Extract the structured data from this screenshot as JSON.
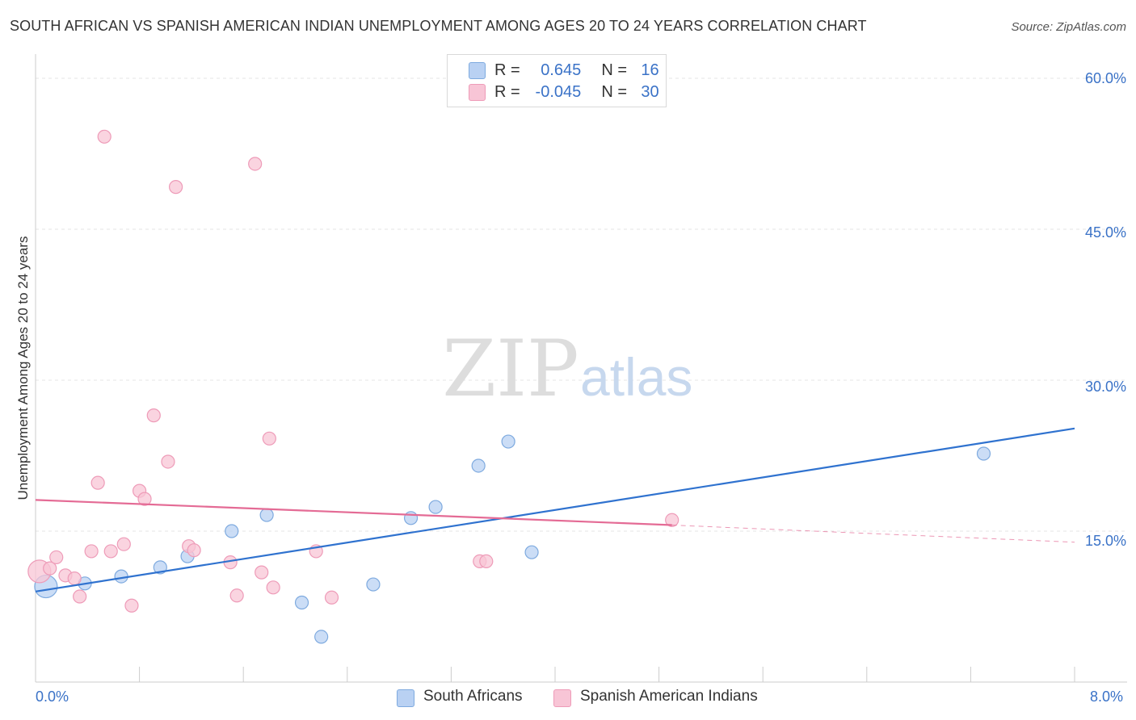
{
  "title": "SOUTH AFRICAN VS SPANISH AMERICAN INDIAN UNEMPLOYMENT AMONG AGES 20 TO 24 YEARS CORRELATION CHART",
  "source": "Source: ZipAtlas.com",
  "watermark": {
    "zip": "ZIP",
    "atlas": "atlas"
  },
  "legend": {
    "rows": [
      {
        "r_label": "R =",
        "r_value": "0.645",
        "n_label": "N =",
        "n_value": "16"
      },
      {
        "r_label": "R =",
        "r_value": "-0.045",
        "n_label": "N =",
        "n_value": "30"
      }
    ]
  },
  "colors": {
    "blue_fill": "#b9d1f3",
    "blue_stroke": "#7eaadf",
    "blue_line": "#2f72cf",
    "pink_fill": "#f8c5d6",
    "pink_stroke": "#ee9bb8",
    "pink_line": "#e46b95",
    "axis_text": "#3a72c7",
    "grid": "#e4e4e4"
  },
  "chart_data": {
    "type": "scatter",
    "title": "SOUTH AFRICAN VS SPANISH AMERICAN INDIAN UNEMPLOYMENT AMONG AGES 20 TO 24 YEARS CORRELATION CHART",
    "xlabel": "",
    "ylabel": "Unemployment Among Ages 20 to 24 years",
    "xlim": [
      0,
      8
    ],
    "ylim": [
      0,
      60
    ],
    "x_tick_labels": [
      "0.0%",
      "8.0%"
    ],
    "y_ticks": [
      15,
      30,
      45,
      60
    ],
    "y_tick_labels": [
      "15.0%",
      "30.0%",
      "45.0%",
      "60.0%"
    ],
    "grid": true,
    "legend_position": "top-center",
    "series": [
      {
        "name": "South Africans",
        "color": "#b9d1f3",
        "points": [
          {
            "x": 0.08,
            "y": 9.5,
            "big": true
          },
          {
            "x": 0.38,
            "y": 9.8
          },
          {
            "x": 0.66,
            "y": 10.5
          },
          {
            "x": 0.96,
            "y": 11.4
          },
          {
            "x": 1.17,
            "y": 12.5
          },
          {
            "x": 1.51,
            "y": 15.0
          },
          {
            "x": 1.78,
            "y": 16.6
          },
          {
            "x": 2.05,
            "y": 7.9
          },
          {
            "x": 2.2,
            "y": 4.5
          },
          {
            "x": 2.6,
            "y": 9.7
          },
          {
            "x": 2.89,
            "y": 16.3
          },
          {
            "x": 3.08,
            "y": 17.4
          },
          {
            "x": 3.41,
            "y": 21.5
          },
          {
            "x": 3.64,
            "y": 23.9
          },
          {
            "x": 3.82,
            "y": 12.9
          },
          {
            "x": 7.3,
            "y": 22.7
          }
        ],
        "trend": {
          "x0": 0.0,
          "y0": 9.0,
          "x1": 8.0,
          "y1": 25.2
        }
      },
      {
        "name": "Spanish American Indians",
        "color": "#f8c5d6",
        "points": [
          {
            "x": 0.03,
            "y": 11.0,
            "big": true
          },
          {
            "x": 0.11,
            "y": 11.3
          },
          {
            "x": 0.16,
            "y": 12.4
          },
          {
            "x": 0.23,
            "y": 10.6
          },
          {
            "x": 0.3,
            "y": 10.3
          },
          {
            "x": 0.34,
            "y": 8.5
          },
          {
            "x": 0.43,
            "y": 13.0
          },
          {
            "x": 0.48,
            "y": 19.8
          },
          {
            "x": 0.53,
            "y": 54.2
          },
          {
            "x": 0.58,
            "y": 13.0
          },
          {
            "x": 0.68,
            "y": 13.7
          },
          {
            "x": 0.74,
            "y": 7.6
          },
          {
            "x": 0.8,
            "y": 19.0
          },
          {
            "x": 0.84,
            "y": 18.2
          },
          {
            "x": 0.91,
            "y": 26.5
          },
          {
            "x": 1.02,
            "y": 21.9
          },
          {
            "x": 1.08,
            "y": 49.2
          },
          {
            "x": 1.18,
            "y": 13.5
          },
          {
            "x": 1.22,
            "y": 13.1
          },
          {
            "x": 1.5,
            "y": 11.9
          },
          {
            "x": 1.55,
            "y": 8.6
          },
          {
            "x": 1.69,
            "y": 51.5
          },
          {
            "x": 1.74,
            "y": 10.9
          },
          {
            "x": 1.8,
            "y": 24.2
          },
          {
            "x": 1.83,
            "y": 9.4
          },
          {
            "x": 2.16,
            "y": 13.0
          },
          {
            "x": 2.28,
            "y": 8.4
          },
          {
            "x": 3.42,
            "y": 12.0
          },
          {
            "x": 3.47,
            "y": 12.0
          },
          {
            "x": 4.9,
            "y": 16.1
          }
        ],
        "trend": {
          "x0": 0.0,
          "y0": 18.1,
          "x1": 4.9,
          "y1": 15.6
        },
        "trend_dashed": {
          "x0": 4.9,
          "y0": 15.6,
          "x1": 8.0,
          "y1": 13.9
        }
      }
    ]
  }
}
